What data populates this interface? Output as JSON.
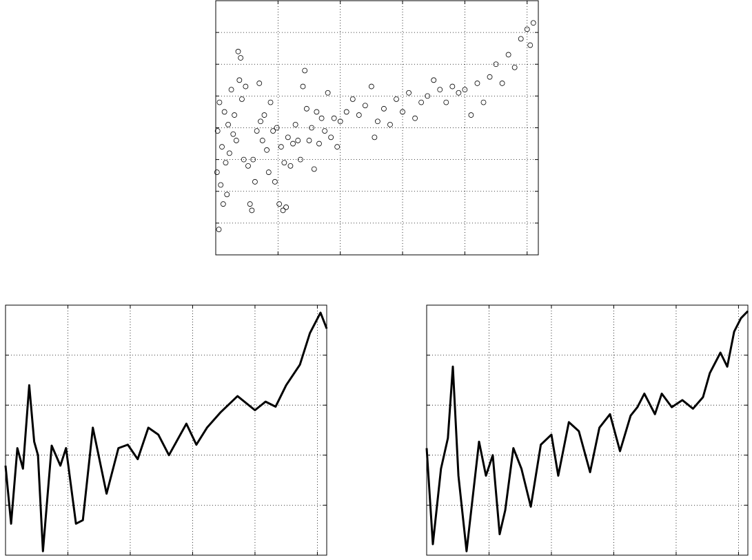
{
  "chart_data": [
    {
      "type": "scatter",
      "color": "#000000",
      "grid": true,
      "xlim": [
        0,
        5.18
      ],
      "ylim": [
        0,
        8
      ],
      "xticks": [
        1,
        2,
        3,
        4,
        5
      ],
      "yticks": [
        1,
        2,
        3,
        4,
        5,
        6,
        7
      ],
      "x": [
        0.02,
        0.03,
        0.05,
        0.06,
        0.08,
        0.1,
        0.12,
        0.14,
        0.16,
        0.18,
        0.2,
        0.22,
        0.25,
        0.28,
        0.3,
        0.33,
        0.36,
        0.38,
        0.4,
        0.42,
        0.45,
        0.48,
        0.52,
        0.55,
        0.58,
        0.6,
        0.63,
        0.66,
        0.7,
        0.72,
        0.75,
        0.78,
        0.82,
        0.85,
        0.88,
        0.92,
        0.95,
        0.98,
        1.02,
        1.05,
        1.08,
        1.1,
        1.13,
        1.16,
        1.2,
        1.24,
        1.28,
        1.32,
        1.36,
        1.4,
        1.43,
        1.46,
        1.5,
        1.54,
        1.58,
        1.62,
        1.66,
        1.7,
        1.75,
        1.8,
        1.85,
        1.9,
        1.95,
        2.0,
        2.1,
        2.2,
        2.3,
        2.4,
        2.5,
        2.55,
        2.6,
        2.7,
        2.8,
        2.9,
        3.0,
        3.1,
        3.2,
        3.3,
        3.4,
        3.5,
        3.6,
        3.7,
        3.8,
        3.9,
        4.0,
        4.1,
        4.2,
        4.3,
        4.4,
        4.5,
        4.6,
        4.7,
        4.8,
        4.9,
        5.0,
        5.05,
        5.1
      ],
      "values": [
        2.6,
        3.9,
        0.8,
        4.8,
        2.2,
        3.4,
        1.6,
        4.5,
        2.9,
        1.9,
        4.1,
        3.2,
        5.2,
        3.8,
        4.4,
        3.6,
        6.4,
        5.5,
        6.2,
        4.9,
        3.0,
        5.3,
        2.8,
        1.6,
        1.4,
        3.0,
        2.3,
        3.9,
        5.4,
        4.2,
        3.6,
        4.4,
        3.3,
        2.6,
        4.8,
        3.9,
        2.3,
        4.0,
        1.6,
        3.4,
        1.4,
        2.9,
        1.5,
        3.7,
        2.8,
        3.5,
        4.1,
        3.6,
        3.0,
        5.3,
        5.8,
        4.6,
        3.6,
        4.0,
        2.7,
        4.5,
        3.5,
        4.3,
        3.9,
        5.1,
        3.7,
        4.3,
        3.4,
        4.2,
        4.5,
        4.9,
        4.4,
        4.7,
        5.3,
        3.7,
        4.2,
        4.6,
        4.1,
        4.9,
        4.5,
        5.1,
        4.3,
        4.8,
        5.0,
        5.5,
        5.2,
        4.8,
        5.3,
        5.1,
        5.2,
        4.4,
        5.4,
        4.8,
        5.6,
        6.0,
        5.4,
        6.3,
        5.9,
        6.8,
        7.1,
        6.6,
        7.3
      ]
    },
    {
      "type": "line",
      "color": "#000000",
      "grid": true,
      "xlim": [
        0,
        5.15
      ],
      "ylim": [
        0,
        5
      ],
      "xticks": [
        1,
        2,
        3,
        4,
        5
      ],
      "yticks": [
        1,
        2,
        3,
        4
      ],
      "x": [
        0,
        0.09,
        0.19,
        0.28,
        0.38,
        0.46,
        0.52,
        0.6,
        0.74,
        0.88,
        0.97,
        1.13,
        1.24,
        1.4,
        1.62,
        1.81,
        1.96,
        2.12,
        2.29,
        2.45,
        2.62,
        2.9,
        3.06,
        3.23,
        3.45,
        3.72,
        4.0,
        4.17,
        4.33,
        4.5,
        4.72,
        4.88,
        5.05,
        5.15
      ],
      "values": [
        1.79,
        0.63,
        2.14,
        1.73,
        3.4,
        2.27,
        2.0,
        0.08,
        2.19,
        1.79,
        2.14,
        0.63,
        0.7,
        2.55,
        1.23,
        2.14,
        2.21,
        1.92,
        2.55,
        2.41,
        2.0,
        2.63,
        2.21,
        2.55,
        2.86,
        3.18,
        2.9,
        3.07,
        2.97,
        3.4,
        3.81,
        4.44,
        4.85,
        4.53
      ]
    },
    {
      "type": "line",
      "color": "#000000",
      "grid": true,
      "xlim": [
        0,
        5.15
      ],
      "ylim": [
        0,
        5
      ],
      "xticks": [
        1,
        2,
        3,
        4,
        5
      ],
      "yticks": [
        1,
        2,
        3,
        4
      ],
      "x": [
        0,
        0.1,
        0.23,
        0.34,
        0.42,
        0.51,
        0.64,
        0.84,
        0.95,
        1.06,
        1.17,
        1.26,
        1.39,
        1.52,
        1.67,
        1.83,
        2.0,
        2.11,
        2.28,
        2.44,
        2.62,
        2.77,
        2.94,
        3.1,
        3.27,
        3.38,
        3.49,
        3.66,
        3.77,
        3.93,
        4.1,
        4.27,
        4.43,
        4.54,
        4.71,
        4.82,
        4.93,
        5.04,
        5.15
      ],
      "values": [
        2.14,
        0.22,
        1.73,
        2.34,
        3.77,
        1.59,
        0.08,
        2.27,
        1.59,
        2.0,
        0.42,
        0.9,
        2.14,
        1.73,
        0.97,
        2.21,
        2.41,
        1.59,
        2.66,
        2.48,
        1.66,
        2.55,
        2.82,
        2.08,
        2.79,
        2.96,
        3.23,
        2.82,
        3.23,
        2.96,
        3.1,
        2.93,
        3.16,
        3.64,
        4.05,
        3.77,
        4.47,
        4.74,
        4.88
      ]
    }
  ]
}
